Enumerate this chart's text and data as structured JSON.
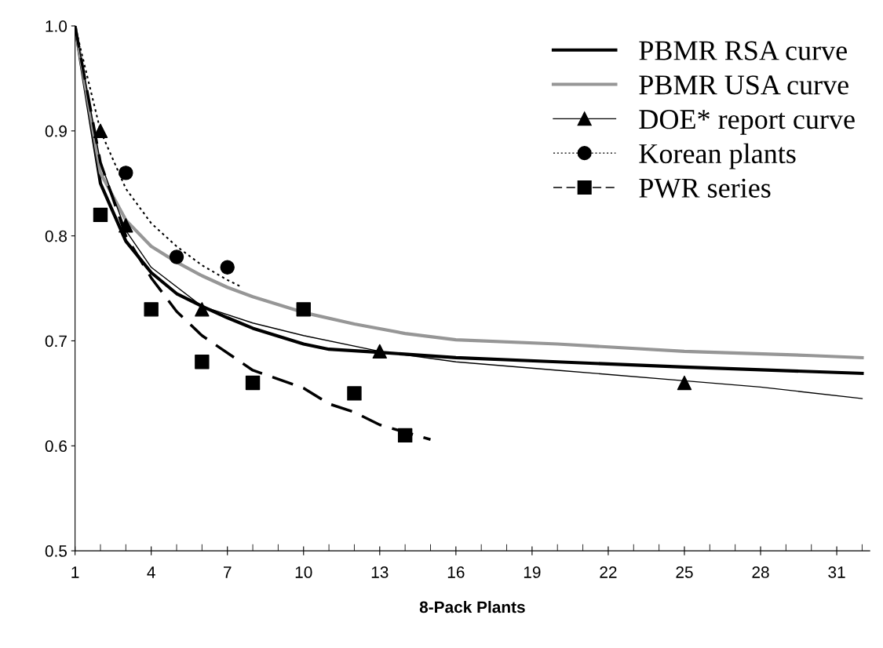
{
  "chart_data": {
    "type": "line",
    "xlabel": "8-Pack Plants",
    "xlim": [
      1,
      32.3
    ],
    "xticks": [
      1,
      4,
      7,
      10,
      13,
      16,
      19,
      22,
      25,
      28,
      31
    ],
    "ylim": [
      0.5,
      1.0
    ],
    "yticks": [
      {
        "value": 0.5,
        "label": "0.5"
      },
      {
        "value": 0.6,
        "label": "0.6"
      },
      {
        "value": 0.7,
        "label": "0.7"
      },
      {
        "value": 0.8,
        "label": "0.8"
      },
      {
        "value": 0.9,
        "label": "0.9"
      },
      {
        "value": 1.0,
        "label": "1.0"
      }
    ],
    "grid": false,
    "legend": "top right",
    "series": [
      {
        "name": "PBMR RSA curve",
        "color": "#000000",
        "line_style": "solid",
        "marker": "none",
        "x": [
          1,
          2,
          3,
          4,
          5,
          6,
          7,
          8,
          10,
          11,
          13,
          16,
          20,
          25,
          32
        ],
        "values": [
          1.0,
          0.85,
          0.795,
          0.765,
          0.745,
          0.733,
          0.722,
          0.712,
          0.697,
          0.692,
          0.689,
          0.684,
          0.68,
          0.675,
          0.669
        ]
      },
      {
        "name": "PBMR USA curve",
        "color": "#969696",
        "line_style": "solid",
        "marker": "none",
        "x": [
          1,
          2,
          3,
          4,
          5,
          6,
          7,
          8,
          10,
          12,
          14,
          16,
          20,
          25,
          30,
          32
        ],
        "values": [
          1.0,
          0.86,
          0.815,
          0.79,
          0.775,
          0.762,
          0.751,
          0.742,
          0.727,
          0.716,
          0.707,
          0.701,
          0.697,
          0.69,
          0.686,
          0.684
        ]
      },
      {
        "name": "DOE* report curve",
        "type": "scatter",
        "color": "#000000",
        "marker": "triangle",
        "line_style": "solid",
        "x": [
          2,
          3,
          6,
          13,
          25
        ],
        "values": [
          0.9,
          0.81,
          0.73,
          0.69,
          0.66
        ]
      },
      {
        "type": "line",
        "color": "#000000",
        "line_style": "solid",
        "marker": "none",
        "x": [
          1,
          2,
          3,
          4,
          6,
          8,
          10,
          13,
          16,
          20,
          25,
          28,
          32
        ],
        "values": [
          1.0,
          0.87,
          0.805,
          0.77,
          0.733,
          0.717,
          0.705,
          0.69,
          0.68,
          0.672,
          0.662,
          0.656,
          0.645
        ]
      },
      {
        "name": "Korean plants",
        "type": "scatter",
        "color": "#000000",
        "marker": "circle",
        "line_style": "dotted",
        "x": [
          3,
          5,
          7
        ],
        "values": [
          0.86,
          0.78,
          0.77
        ]
      },
      {
        "type": "line",
        "color": "#000000",
        "line_style": "dotted",
        "marker": "none",
        "x": [
          1,
          2,
          3,
          4,
          5,
          6,
          7,
          7.5
        ],
        "values": [
          1.0,
          0.9,
          0.845,
          0.812,
          0.79,
          0.772,
          0.758,
          0.752
        ]
      },
      {
        "name": "PWR series",
        "type": "scatter",
        "color": "#000000",
        "marker": "square",
        "line_style": "dashed",
        "x": [
          2,
          4,
          6,
          8,
          10,
          12,
          14
        ],
        "values": [
          0.82,
          0.73,
          0.68,
          0.66,
          0.73,
          0.65,
          0.61
        ]
      },
      {
        "type": "line",
        "color": "#000000",
        "line_style": "dashed",
        "marker": "none",
        "x": [
          1,
          2,
          3,
          4,
          5,
          6,
          8,
          10,
          11,
          12,
          13,
          14,
          15
        ],
        "values": [
          1.0,
          0.87,
          0.8,
          0.76,
          0.728,
          0.705,
          0.672,
          0.655,
          0.64,
          0.632,
          0.62,
          0.613,
          0.606
        ]
      }
    ]
  }
}
